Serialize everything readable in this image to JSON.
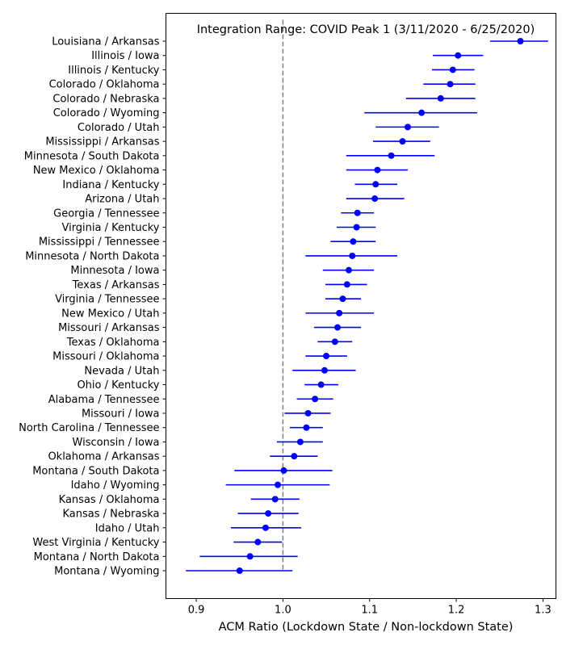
{
  "chart_data": {
    "type": "scatter",
    "subtype": "forest-plot",
    "title": "Integration Range: COVID Peak 1 (3/11/2020 - 6/25/2020)",
    "xlabel": "ACM Ratio (Lockdown State / Non-lockdown State)",
    "ylabel": "",
    "xlim": [
      0.865,
      1.315
    ],
    "xticks": [
      "0.9",
      "1.0",
      "1.1",
      "1.2",
      "1.3"
    ],
    "xtick_values": [
      0.9,
      1.0,
      1.1,
      1.2,
      1.3
    ],
    "reference_line": 1.0,
    "grid": false,
    "colors": {
      "points": "#0000ff",
      "reference": "#808080",
      "axes": "#000000"
    },
    "rows": [
      {
        "label": "Louisiana / Arkansas",
        "value": 1.274,
        "low": 1.239,
        "high": 1.306
      },
      {
        "label": "Illinois / Iowa",
        "value": 1.202,
        "low": 1.173,
        "high": 1.231
      },
      {
        "label": "Illinois / Kentucky",
        "value": 1.196,
        "low": 1.172,
        "high": 1.221
      },
      {
        "label": "Colorado / Oklahoma",
        "value": 1.193,
        "low": 1.162,
        "high": 1.222
      },
      {
        "label": "Colorado / Nebraska",
        "value": 1.182,
        "low": 1.142,
        "high": 1.222
      },
      {
        "label": "Colorado / Wyoming",
        "value": 1.16,
        "low": 1.094,
        "high": 1.224
      },
      {
        "label": "Colorado / Utah",
        "value": 1.144,
        "low": 1.107,
        "high": 1.18
      },
      {
        "label": "Mississippi / Arkansas",
        "value": 1.138,
        "low": 1.104,
        "high": 1.17
      },
      {
        "label": "Minnesota / South Dakota",
        "value": 1.125,
        "low": 1.073,
        "high": 1.175
      },
      {
        "label": "New Mexico / Oklahoma",
        "value": 1.109,
        "low": 1.073,
        "high": 1.144
      },
      {
        "label": "Indiana / Kentucky",
        "value": 1.107,
        "low": 1.083,
        "high": 1.132
      },
      {
        "label": "Arizona / Utah",
        "value": 1.106,
        "low": 1.073,
        "high": 1.14
      },
      {
        "label": "Georgia / Tennessee",
        "value": 1.086,
        "low": 1.067,
        "high": 1.105
      },
      {
        "label": "Virginia / Kentucky",
        "value": 1.085,
        "low": 1.062,
        "high": 1.107
      },
      {
        "label": "Mississippi / Tennessee",
        "value": 1.081,
        "low": 1.055,
        "high": 1.107
      },
      {
        "label": "Minnesota / North Dakota",
        "value": 1.08,
        "low": 1.026,
        "high": 1.132
      },
      {
        "label": "Minnesota / Iowa",
        "value": 1.076,
        "low": 1.046,
        "high": 1.105
      },
      {
        "label": "Texas / Arkansas",
        "value": 1.074,
        "low": 1.049,
        "high": 1.097
      },
      {
        "label": "Virginia / Tennessee",
        "value": 1.069,
        "low": 1.049,
        "high": 1.09
      },
      {
        "label": "New Mexico / Utah",
        "value": 1.065,
        "low": 1.026,
        "high": 1.105
      },
      {
        "label": "Missouri / Arkansas",
        "value": 1.063,
        "low": 1.036,
        "high": 1.09
      },
      {
        "label": "Texas / Oklahoma",
        "value": 1.06,
        "low": 1.04,
        "high": 1.08
      },
      {
        "label": "Missouri / Oklahoma",
        "value": 1.05,
        "low": 1.026,
        "high": 1.074
      },
      {
        "label": "Nevada / Utah",
        "value": 1.048,
        "low": 1.011,
        "high": 1.084
      },
      {
        "label": "Ohio / Kentucky",
        "value": 1.044,
        "low": 1.025,
        "high": 1.064
      },
      {
        "label": "Alabama / Tennessee",
        "value": 1.037,
        "low": 1.016,
        "high": 1.058
      },
      {
        "label": "Missouri / Iowa",
        "value": 1.029,
        "low": 1.002,
        "high": 1.055
      },
      {
        "label": "North Carolina / Tennessee",
        "value": 1.027,
        "low": 1.008,
        "high": 1.046
      },
      {
        "label": "Wisconsin / Iowa",
        "value": 1.02,
        "low": 0.993,
        "high": 1.046
      },
      {
        "label": "Oklahoma / Arkansas",
        "value": 1.013,
        "low": 0.985,
        "high": 1.04
      },
      {
        "label": "Montana / South Dakota",
        "value": 1.001,
        "low": 0.944,
        "high": 1.057
      },
      {
        "label": "Idaho / Wyoming",
        "value": 0.994,
        "low": 0.934,
        "high": 1.054
      },
      {
        "label": "Kansas / Oklahoma",
        "value": 0.991,
        "low": 0.963,
        "high": 1.019
      },
      {
        "label": "Kansas / Nebraska",
        "value": 0.983,
        "low": 0.948,
        "high": 1.018
      },
      {
        "label": "Idaho / Utah",
        "value": 0.98,
        "low": 0.94,
        "high": 1.021
      },
      {
        "label": "West Virginia / Kentucky",
        "value": 0.971,
        "low": 0.943,
        "high": 0.999
      },
      {
        "label": "Montana / North Dakota",
        "value": 0.962,
        "low": 0.904,
        "high": 1.017
      },
      {
        "label": "Montana / Wyoming",
        "value": 0.95,
        "low": 0.888,
        "high": 1.011
      }
    ]
  }
}
